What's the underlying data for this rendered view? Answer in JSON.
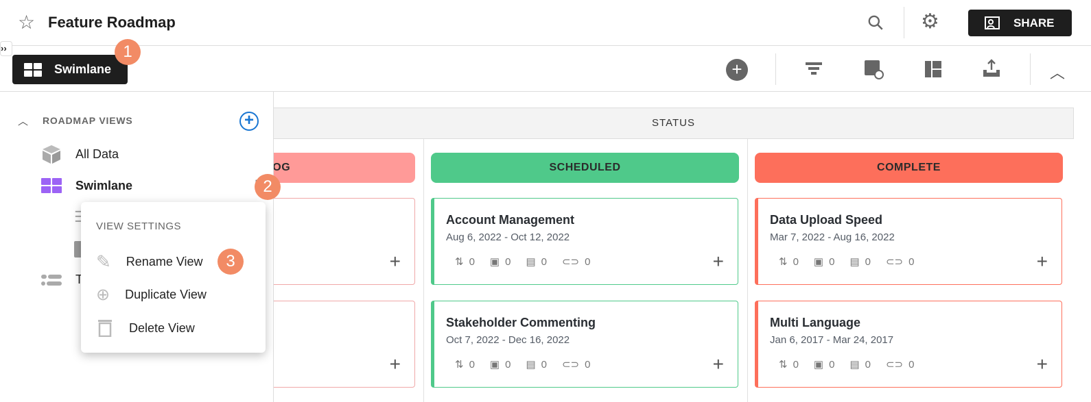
{
  "header": {
    "title": "Feature Roadmap",
    "share_label": "SHARE"
  },
  "toolbar": {
    "view_button_label": "Swimlane"
  },
  "sidebar": {
    "section_title": "ROADMAP VIEWS",
    "items": [
      {
        "label": "All Data"
      },
      {
        "label": "Swimlane"
      },
      {
        "label": "T"
      }
    ]
  },
  "context_menu": {
    "title": "VIEW SETTINGS",
    "items": [
      {
        "label": "Rename View"
      },
      {
        "label": "Duplicate View"
      },
      {
        "label": "Delete View"
      }
    ]
  },
  "badges": [
    "1",
    "2",
    "3"
  ],
  "board": {
    "group_label": "STATUS",
    "columns": [
      {
        "label": "BACKLOG",
        "color": "#ff9a98",
        "border": "#f0a8a8",
        "cards": [
          {},
          {}
        ]
      },
      {
        "label": "SCHEDULED",
        "color": "#4fc98a",
        "border": "#4fc98a",
        "cards": [
          {
            "title": "Account Management",
            "dates": "Aug 6, 2022 - Oct 12, 2022",
            "dependencies": "0",
            "milestones": "0",
            "comments": "0",
            "attachments": "0"
          },
          {
            "title": "Stakeholder Commenting",
            "dates": "Oct 7, 2022 - Dec 16, 2022",
            "dependencies": "0",
            "milestones": "0",
            "comments": "0",
            "attachments": "0"
          }
        ]
      },
      {
        "label": "COMPLETE",
        "color": "#fd6f5b",
        "border": "#fd6f5b",
        "cards": [
          {
            "title": "Data Upload Speed",
            "dates": "Mar 7, 2022 - Aug 16, 2022",
            "dependencies": "0",
            "milestones": "0",
            "comments": "0",
            "attachments": "0"
          },
          {
            "title": "Multi Language",
            "dates": "Jan 6, 2017 - Mar 24, 2017",
            "dependencies": "0",
            "milestones": "0",
            "comments": "0",
            "attachments": "0"
          }
        ]
      }
    ]
  }
}
